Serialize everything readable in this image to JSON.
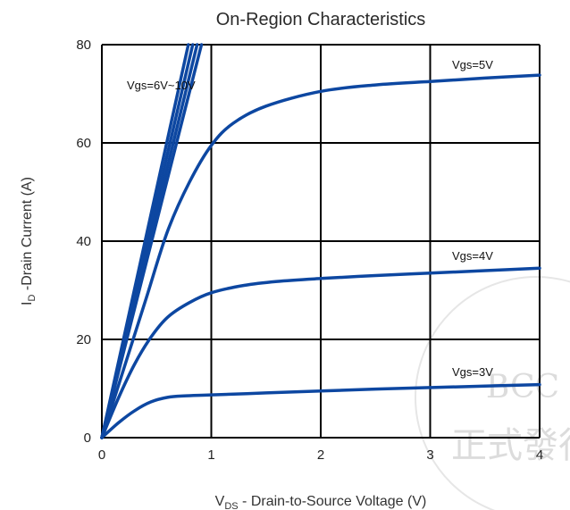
{
  "chart_data": {
    "type": "line",
    "title": "On-Region Characteristics",
    "xlabel": {
      "main": "V",
      "sub": "DS",
      "rest": " - Drain-to-Source Voltage (V)"
    },
    "ylabel": {
      "main": "I",
      "sub": "D",
      "rest": " -Drain Current (A)"
    },
    "xlim": [
      0,
      4
    ],
    "ylim": [
      0,
      80
    ],
    "xticks": [
      "0",
      "1",
      "2",
      "3",
      "4"
    ],
    "yticks": [
      "0",
      "20",
      "40",
      "60",
      "80"
    ],
    "grid": true,
    "series": [
      {
        "name": "Vgs=5V",
        "x": [
          0,
          0.2,
          0.4,
          0.6,
          0.8,
          1.0,
          1.2,
          1.5,
          2.0,
          2.5,
          3.0,
          3.5,
          4.0
        ],
        "y": [
          0,
          14,
          28,
          42,
          52,
          59.5,
          64,
          67.5,
          70.5,
          71.8,
          72.5,
          73.2,
          73.8
        ]
      },
      {
        "name": "Vgs=4V",
        "x": [
          0,
          0.15,
          0.3,
          0.45,
          0.6,
          0.8,
          1.0,
          1.3,
          1.6,
          2.0,
          2.5,
          3.0,
          3.5,
          4.0
        ],
        "y": [
          0,
          8,
          15,
          20.5,
          24.5,
          27.5,
          29.5,
          31,
          31.8,
          32.4,
          33,
          33.5,
          34,
          34.5
        ]
      },
      {
        "name": "Vgs=3V",
        "x": [
          0,
          0.15,
          0.3,
          0.45,
          0.6,
          0.75,
          1.0,
          1.5,
          2.0,
          2.5,
          3.0,
          3.5,
          4.0
        ],
        "y": [
          0,
          3,
          5.5,
          7.3,
          8.2,
          8.5,
          8.7,
          9.1,
          9.5,
          9.9,
          10.2,
          10.5,
          10.8
        ]
      },
      {
        "name": "Vgs=6V~10V",
        "lines": [
          {
            "x": [
              0,
              0.79
            ],
            "y": [
              0,
              80
            ]
          },
          {
            "x": [
              0,
              0.83
            ],
            "y": [
              0,
              80
            ]
          },
          {
            "x": [
              0,
              0.87
            ],
            "y": [
              0,
              80
            ]
          },
          {
            "x": [
              0,
              0.91
            ],
            "y": [
              0,
              80
            ]
          }
        ]
      }
    ],
    "annotations": [
      "Vgs=6V~10V",
      "Vgs=5V",
      "Vgs=4V",
      "Vgs=3V"
    ]
  },
  "watermark": {
    "line1": "BCC",
    "line2": "正式發行"
  },
  "colors": {
    "curve": "#0d47a1",
    "grid": "#000000",
    "watermark": "#dcdcdc"
  }
}
